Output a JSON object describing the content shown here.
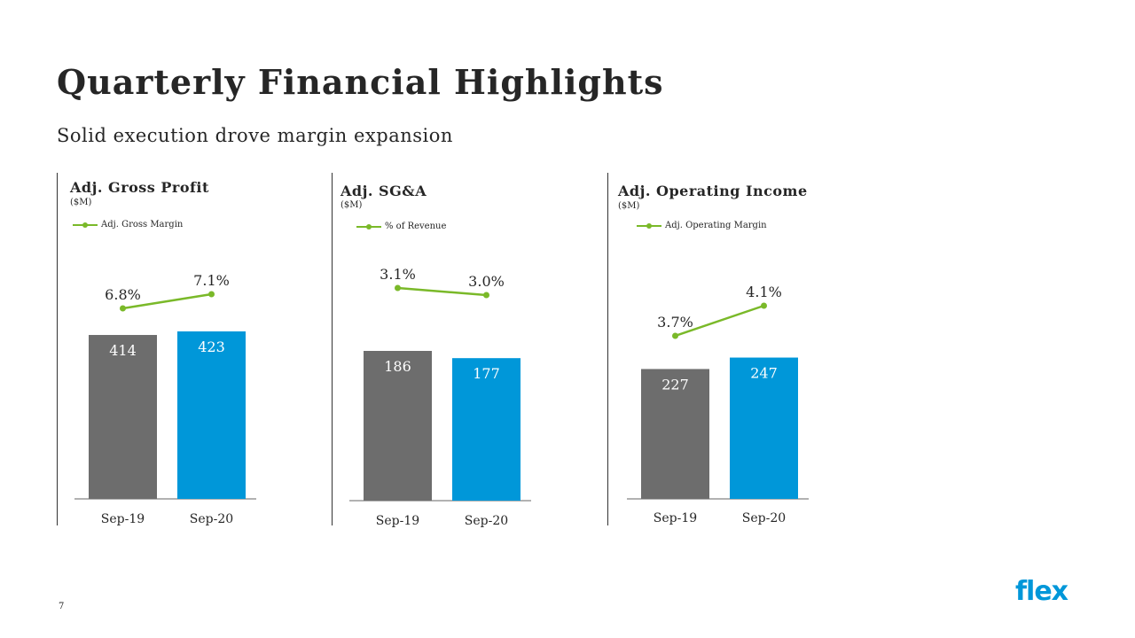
{
  "title": "Quarterly Financial Highlights",
  "subtitle": "Solid execution drove margin expansion",
  "slide_number": "7",
  "logo": "flex",
  "colors": {
    "prior_bar": "#6d6d6d",
    "current_bar": "#0097d9",
    "line": "#7ab929",
    "axis": "#999999"
  },
  "chart_data": [
    {
      "type": "bar",
      "title": "Adj. Gross Profit",
      "unit": "($M)",
      "categories": [
        "Sep-19",
        "Sep-20"
      ],
      "series": [
        {
          "values": [
            414,
            423
          ]
        },
        {
          "name": "Adj. Gross Margin",
          "type": "line",
          "values": [
            6.8,
            7.1
          ],
          "labels": [
            "6.8%",
            "7.1%"
          ]
        }
      ]
    },
    {
      "type": "bar",
      "title": "Adj. SG&A",
      "unit": "($M)",
      "categories": [
        "Sep-19",
        "Sep-20"
      ],
      "series": [
        {
          "values": [
            186,
            177
          ]
        },
        {
          "name": "% of Revenue",
          "type": "line",
          "values": [
            3.1,
            3.0
          ],
          "labels": [
            "3.1%",
            "3.0%"
          ]
        }
      ]
    },
    {
      "type": "bar",
      "title": "Adj. Operating Income",
      "unit": "($M)",
      "categories": [
        "Sep-19",
        "Sep-20"
      ],
      "series": [
        {
          "values": [
            227,
            247
          ]
        },
        {
          "name": "Adj. Operating Margin",
          "type": "line",
          "values": [
            3.7,
            4.1
          ],
          "labels": [
            "3.7%",
            "4.1%"
          ]
        }
      ]
    }
  ]
}
